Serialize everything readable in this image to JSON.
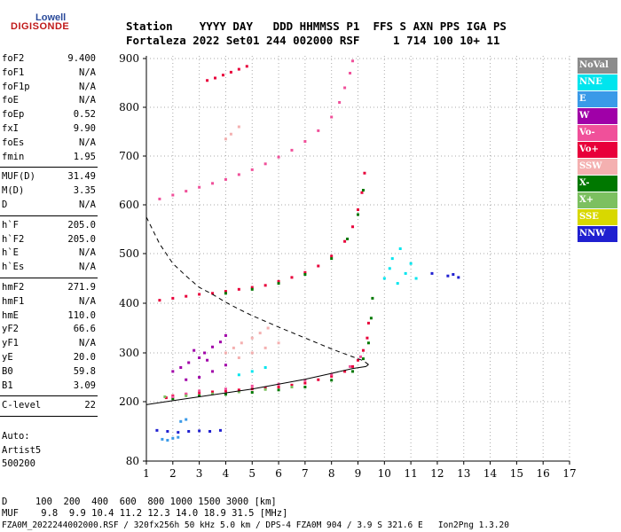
{
  "logo": {
    "line1": "Lowell",
    "line2": "DIGISONDE"
  },
  "header": {
    "row1": "Station    YYYY DAY   DDD HHMMSS P1  FFS S AXN PPS IGA PS",
    "row2": "Fortaleza 2022 Set01 244 002000 RSF     1 714 100 10+ 11"
  },
  "params": {
    "group1": [
      {
        "name": "foF2",
        "value": "9.400"
      },
      {
        "name": "foF1",
        "value": "N/A"
      },
      {
        "name": "foF1p",
        "value": "N/A"
      },
      {
        "name": "foE",
        "value": "N/A"
      },
      {
        "name": "foEp",
        "value": "0.52"
      },
      {
        "name": "fxI",
        "value": "9.90"
      },
      {
        "name": "foEs",
        "value": "N/A"
      },
      {
        "name": "fmin",
        "value": "1.95"
      }
    ],
    "group2": [
      {
        "name": "MUF(D)",
        "value": "31.49"
      },
      {
        "name": "M(D)",
        "value": "3.35"
      },
      {
        "name": "D",
        "value": "N/A"
      }
    ],
    "group3": [
      {
        "name": "h`F",
        "value": "205.0"
      },
      {
        "name": "h`F2",
        "value": "205.0"
      },
      {
        "name": "h`E",
        "value": "N/A"
      },
      {
        "name": "h`Es",
        "value": "N/A"
      }
    ],
    "group4": [
      {
        "name": "hmF2",
        "value": "271.9"
      },
      {
        "name": "hmF1",
        "value": "N/A"
      },
      {
        "name": "hmE",
        "value": "110.0"
      },
      {
        "name": "yF2",
        "value": "66.6"
      },
      {
        "name": "yF1",
        "value": "N/A"
      },
      {
        "name": "yE",
        "value": "20.0"
      },
      {
        "name": "B0",
        "value": "59.8"
      },
      {
        "name": "B1",
        "value": "3.09"
      }
    ],
    "group5": [
      {
        "name": "C-level",
        "value": "22"
      }
    ]
  },
  "auto": {
    "line1": "Auto:",
    "line2": "Artist5",
    "line3": "500200"
  },
  "legend": [
    {
      "label": "NoVal",
      "bg": "#8c8c8c",
      "fg": "#ffffff"
    },
    {
      "label": "NNE",
      "bg": "#00e5ee",
      "fg": "#ffffff"
    },
    {
      "label": "E",
      "bg": "#3a9ae8",
      "fg": "#ffffff"
    },
    {
      "label": "W",
      "bg": "#a000a8",
      "fg": "#ffffff"
    },
    {
      "label": "Vo-",
      "bg": "#f0509a",
      "fg": "#ffffff"
    },
    {
      "label": "Vo+",
      "bg": "#e8003a",
      "fg": "#ffffff"
    },
    {
      "label": "SSW",
      "bg": "#f4b0b0",
      "fg": "#ffffff"
    },
    {
      "label": "X-",
      "bg": "#007800",
      "fg": "#ffffff"
    },
    {
      "label": "X+",
      "bg": "#7cc060",
      "fg": "#ffffff"
    },
    {
      "label": "SSE",
      "bg": "#d8d800",
      "fg": "#ffffff"
    },
    {
      "label": "NNW",
      "bg": "#2020d0",
      "fg": "#ffffff"
    }
  ],
  "footer": {
    "row1": "D     100  200  400  600  800 1000 1500 3000 [km]",
    "row2": "MUF    9.8  9.9 10.4 11.2 12.3 14.0 18.9 31.5 [MHz]",
    "row3": "FZA0M_2022244002000.RSF / 320fx256h 50 kHz 5.0 km / DPS-4 FZA0M 904 / 3.9 S 321.6 E   Ion2Png 1.3.20"
  },
  "chart_data": {
    "type": "scatter",
    "xlim": [
      1,
      17
    ],
    "ylim": [
      80,
      900
    ],
    "xticks": [
      1,
      2,
      3,
      4,
      5,
      6,
      7,
      8,
      9,
      10,
      11,
      12,
      13,
      14,
      15,
      16,
      17
    ],
    "yticks": [
      80,
      200,
      300,
      400,
      500,
      600,
      700,
      800,
      900
    ],
    "grid": true,
    "series": [
      {
        "color": "#e8003a",
        "points": [
          [
            1.75,
            208
          ],
          [
            2,
            212
          ],
          [
            2.5,
            215
          ],
          [
            3,
            218
          ],
          [
            3.5,
            220
          ],
          [
            4,
            222
          ],
          [
            4.5,
            224
          ],
          [
            5,
            226
          ],
          [
            5.5,
            228
          ],
          [
            6,
            230
          ],
          [
            6.5,
            234
          ],
          [
            7,
            238
          ],
          [
            7.5,
            245
          ],
          [
            8,
            252
          ],
          [
            8.5,
            262
          ],
          [
            8.8,
            272
          ],
          [
            9,
            285
          ],
          [
            9.2,
            305
          ],
          [
            9.35,
            330
          ],
          [
            9.4,
            360
          ]
        ]
      },
      {
        "color": "#007800",
        "points": [
          [
            2,
            206
          ],
          [
            3,
            212
          ],
          [
            4,
            215
          ],
          [
            5,
            219
          ],
          [
            6,
            224
          ],
          [
            7,
            230
          ],
          [
            8,
            244
          ],
          [
            8.8,
            262
          ],
          [
            9.2,
            288
          ],
          [
            9.4,
            320
          ],
          [
            9.5,
            370
          ],
          [
            9.55,
            410
          ]
        ]
      },
      {
        "color": "#f0509a",
        "points": [
          [
            2,
            210
          ],
          [
            2.5,
            216
          ],
          [
            3,
            222
          ],
          [
            4,
            226
          ],
          [
            5,
            232
          ],
          [
            6,
            236
          ],
          [
            7,
            244
          ],
          [
            8,
            256
          ],
          [
            8.7,
            272
          ],
          [
            9.1,
            292
          ]
        ]
      },
      {
        "color": "#e8003a",
        "points": [
          [
            1.5,
            406
          ],
          [
            2,
            410
          ],
          [
            2.5,
            414
          ],
          [
            3,
            418
          ],
          [
            3.5,
            420
          ],
          [
            4,
            424
          ],
          [
            4.5,
            428
          ],
          [
            5,
            432
          ],
          [
            5.5,
            436
          ],
          [
            6,
            444
          ],
          [
            6.5,
            452
          ],
          [
            7,
            462
          ],
          [
            7.5,
            475
          ],
          [
            8,
            495
          ],
          [
            8.5,
            525
          ],
          [
            8.8,
            555
          ],
          [
            9,
            590
          ],
          [
            9.15,
            625
          ],
          [
            9.25,
            665
          ]
        ]
      },
      {
        "color": "#007800",
        "points": [
          [
            4,
            420
          ],
          [
            5,
            428
          ],
          [
            6,
            440
          ],
          [
            7,
            458
          ],
          [
            8,
            490
          ],
          [
            8.6,
            530
          ],
          [
            9,
            580
          ],
          [
            9.2,
            630
          ]
        ]
      },
      {
        "color": "#f0509a",
        "points": [
          [
            1.5,
            612
          ],
          [
            2,
            620
          ],
          [
            2.5,
            628
          ],
          [
            3,
            636
          ],
          [
            3.5,
            644
          ],
          [
            4,
            652
          ],
          [
            4.5,
            662
          ],
          [
            5,
            672
          ],
          [
            5.5,
            684
          ],
          [
            6,
            698
          ],
          [
            6.5,
            712
          ],
          [
            7,
            730
          ],
          [
            7.5,
            752
          ],
          [
            8,
            780
          ],
          [
            8.3,
            810
          ],
          [
            8.5,
            840
          ],
          [
            8.7,
            870
          ],
          [
            8.8,
            895
          ]
        ]
      },
      {
        "color": "#e8003a",
        "points": [
          [
            3.3,
            855
          ],
          [
            3.6,
            860
          ],
          [
            3.9,
            866
          ],
          [
            4.2,
            872
          ],
          [
            4.5,
            878
          ],
          [
            4.8,
            884
          ]
        ]
      },
      {
        "color": "#a000a8",
        "points": [
          [
            2,
            262
          ],
          [
            2.3,
            270
          ],
          [
            2.6,
            280
          ],
          [
            3,
            290
          ],
          [
            3.2,
            300
          ],
          [
            3.5,
            312
          ],
          [
            3.8,
            322
          ],
          [
            4,
            335
          ],
          [
            2.5,
            245
          ],
          [
            3,
            250
          ],
          [
            3.5,
            262
          ],
          [
            4,
            275
          ],
          [
            2.8,
            305
          ],
          [
            3.3,
            285
          ]
        ]
      },
      {
        "color": "#f4b0b0",
        "points": [
          [
            4,
            300
          ],
          [
            4.3,
            310
          ],
          [
            4.6,
            320
          ],
          [
            5,
            330
          ],
          [
            5.3,
            340
          ],
          [
            5.6,
            350
          ],
          [
            4.5,
            290
          ],
          [
            5,
            300
          ],
          [
            5.5,
            310
          ],
          [
            6,
            320
          ],
          [
            4.2,
            745
          ],
          [
            4.5,
            760
          ],
          [
            4,
            735
          ]
        ]
      },
      {
        "color": "#00e5ee",
        "points": [
          [
            10,
            450
          ],
          [
            10.2,
            470
          ],
          [
            10.3,
            490
          ],
          [
            10.5,
            440
          ],
          [
            10.6,
            510
          ],
          [
            10.8,
            460
          ],
          [
            11,
            480
          ],
          [
            11.2,
            450
          ],
          [
            4.5,
            255
          ],
          [
            5,
            262
          ],
          [
            5.5,
            270
          ]
        ]
      },
      {
        "color": "#2020d0",
        "points": [
          [
            1.4,
            142
          ],
          [
            1.8,
            140
          ],
          [
            2.2,
            138
          ],
          [
            2.6,
            140
          ],
          [
            3,
            141
          ],
          [
            3.4,
            140
          ],
          [
            3.8,
            142
          ],
          [
            12.4,
            455
          ],
          [
            12.6,
            458
          ],
          [
            12.8,
            452
          ],
          [
            11.8,
            460
          ]
        ]
      },
      {
        "color": "#3a9ae8",
        "points": [
          [
            1.8,
            122
          ],
          [
            2,
            126
          ],
          [
            2.2,
            128
          ],
          [
            1.6,
            124
          ],
          [
            2.3,
            160
          ],
          [
            2.5,
            164
          ]
        ]
      },
      {
        "color": "#7cc060",
        "points": [
          [
            1.7,
            210
          ],
          [
            2.5,
            212
          ],
          [
            3.5,
            216
          ],
          [
            4.5,
            220
          ],
          [
            5.5,
            225
          ],
          [
            6.5,
            230
          ]
        ]
      }
    ],
    "curves": [
      {
        "style": "solid",
        "points": [
          [
            1,
            194
          ],
          [
            2,
            202
          ],
          [
            3,
            210
          ],
          [
            4,
            218
          ],
          [
            5,
            226
          ],
          [
            6,
            236
          ],
          [
            7,
            246
          ],
          [
            8,
            258
          ],
          [
            8.8,
            268
          ],
          [
            9.3,
            272
          ],
          [
            9.4,
            276
          ]
        ]
      },
      {
        "style": "dashed",
        "points": [
          [
            1,
            575
          ],
          [
            1.5,
            520
          ],
          [
            2,
            480
          ],
          [
            2.5,
            455
          ],
          [
            3,
            432
          ],
          [
            3.5,
            418
          ],
          [
            4,
            402
          ],
          [
            4.5,
            388
          ],
          [
            5,
            375
          ],
          [
            6,
            352
          ],
          [
            7,
            330
          ],
          [
            8,
            308
          ],
          [
            8.8,
            292
          ],
          [
            9.2,
            284
          ],
          [
            9.4,
            276
          ]
        ]
      }
    ]
  }
}
